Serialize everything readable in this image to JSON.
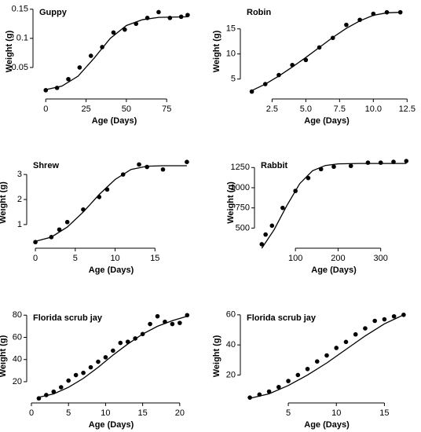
{
  "chart_data": [
    {
      "type": "scatter",
      "title": "Guppy",
      "x_label": "Age (Days)",
      "y_label": "Weight (g)",
      "x": [
        0,
        7,
        14,
        21,
        28,
        35,
        42,
        49,
        56,
        63,
        70,
        77,
        84,
        88
      ],
      "values": [
        0.011,
        0.015,
        0.03,
        0.05,
        0.07,
        0.085,
        0.11,
        0.115,
        0.125,
        0.135,
        0.145,
        0.135,
        0.137,
        0.14
      ],
      "fit_x": [
        0,
        10,
        20,
        30,
        40,
        50,
        60,
        70,
        88
      ],
      "fit_values": [
        0.012,
        0.018,
        0.035,
        0.066,
        0.1,
        0.122,
        0.132,
        0.136,
        0.137
      ],
      "color": "#000000",
      "xlim": [
        -5,
        90
      ],
      "ylim": [
        0,
        0.155
      ],
      "xticks": [
        0,
        25,
        50,
        75
      ],
      "yticks": [
        0.05,
        0.1,
        0.15
      ]
    },
    {
      "type": "scatter",
      "title": "Robin",
      "x_label": "Age (Days)",
      "y_label": "Weight (g)",
      "x": [
        1,
        2,
        3,
        4,
        5,
        6,
        7,
        8,
        9,
        10,
        11,
        12
      ],
      "values": [
        2.5,
        4,
        5.8,
        7.8,
        8.8,
        11.3,
        13.2,
        15.8,
        16.8,
        18,
        18.3,
        18.3
      ],
      "fit_x": [
        1,
        2,
        3,
        4,
        5,
        6,
        7,
        8,
        9,
        10,
        11,
        12
      ],
      "fit_values": [
        2.7,
        4.0,
        5.6,
        7.4,
        9.3,
        11.3,
        13.3,
        15.1,
        16.6,
        17.7,
        18.2,
        18.3
      ],
      "color": "#000000",
      "xlim": [
        0.5,
        12.6
      ],
      "ylim": [
        1.5,
        19.5
      ],
      "xticks": [
        2.5,
        {
          "value": 5,
          "label": "5.0"
        },
        7.5,
        {
          "value": 10,
          "label": "10.0"
        },
        12.5
      ],
      "yticks": [
        5,
        10,
        15
      ]
    },
    {
      "type": "scatter",
      "title": "Shrew",
      "x_label": "Age (Days)",
      "y_label": "Weight (g)",
      "x": [
        0,
        2,
        3,
        4,
        6,
        8,
        9,
        11,
        13,
        14,
        16,
        19
      ],
      "values": [
        0.3,
        0.5,
        0.8,
        1.1,
        1.6,
        2.1,
        2.4,
        3.0,
        3.4,
        3.3,
        3.2,
        3.5
      ],
      "fit_x": [
        0,
        2,
        4,
        6,
        8,
        10,
        12,
        14,
        16,
        19
      ],
      "fit_values": [
        0.33,
        0.5,
        0.9,
        1.5,
        2.2,
        2.8,
        3.2,
        3.33,
        3.35,
        3.35
      ],
      "color": "#000000",
      "xlim": [
        -0.5,
        19.5
      ],
      "ylim": [
        0.15,
        3.6
      ],
      "xticks": [
        0,
        5,
        10,
        15
      ],
      "yticks": [
        1,
        2,
        3
      ]
    },
    {
      "type": "scatter",
      "title": "Rabbit",
      "x_label": "Age (Days)",
      "y_label": "Weight (g)",
      "x": [
        21,
        30,
        45,
        70,
        100,
        130,
        160,
        190,
        230,
        270,
        300,
        330,
        360
      ],
      "values": [
        300,
        420,
        530,
        750,
        960,
        1120,
        1230,
        1260,
        1270,
        1310,
        1310,
        1320,
        1330
      ],
      "fit_x": [
        21,
        50,
        80,
        110,
        140,
        170,
        200,
        250,
        360
      ],
      "fit_values": [
        250,
        480,
        780,
        1050,
        1210,
        1275,
        1295,
        1300,
        1300
      ],
      "color": "#000000",
      "xlim": [
        15,
        365
      ],
      "ylim": [
        280,
        1350
      ],
      "xticks": [
        100,
        200,
        300
      ],
      "yticks": [
        500,
        750,
        1000,
        1250
      ]
    },
    {
      "type": "scatter",
      "title": "Florida scrub jay",
      "x_label": "Age (Days)",
      "y_label": "Weight (g)",
      "x": [
        1,
        2,
        3,
        4,
        5,
        6,
        7,
        8,
        9,
        10,
        11,
        12,
        13,
        14,
        15,
        16,
        17,
        18,
        19,
        20,
        21
      ],
      "values": [
        5,
        8,
        11,
        15,
        21,
        26,
        28,
        33,
        38,
        42,
        48,
        55,
        56,
        59,
        63,
        72,
        79,
        74,
        72,
        73,
        80
      ],
      "fit_x": [
        1,
        3,
        5,
        7,
        9,
        11,
        13,
        15,
        17,
        19,
        21
      ],
      "fit_values": [
        6,
        9,
        15,
        23,
        33,
        44,
        54,
        63,
        70,
        75,
        79
      ],
      "color": "#000000",
      "xlim": [
        0,
        21.5
      ],
      "ylim": [
        3,
        83
      ],
      "xticks": [
        0,
        5,
        10,
        15,
        20
      ],
      "yticks": [
        20,
        40,
        60,
        80
      ]
    },
    {
      "type": "scatter",
      "title": "Florida scrub jay",
      "x_label": "Age (Days)",
      "y_label": "Weight (g)",
      "x": [
        1,
        2,
        3,
        4,
        5,
        6,
        7,
        8,
        9,
        10,
        11,
        12,
        13,
        14,
        15,
        16,
        17
      ],
      "values": [
        5,
        7,
        9,
        12,
        16,
        20,
        24,
        29,
        33,
        38,
        42,
        47,
        51,
        56,
        57,
        59,
        60
      ],
      "fit_x": [
        1,
        3,
        5,
        7,
        9,
        11,
        13,
        15,
        17
      ],
      "fit_values": [
        4.5,
        7.5,
        13,
        20,
        28,
        37,
        46,
        54,
        60
      ],
      "color": "#000000",
      "xlim": [
        0.5,
        17.5
      ],
      "ylim": [
        3,
        62
      ],
      "xticks": [
        5,
        10,
        15
      ],
      "yticks": [
        20,
        40,
        60
      ]
    }
  ]
}
